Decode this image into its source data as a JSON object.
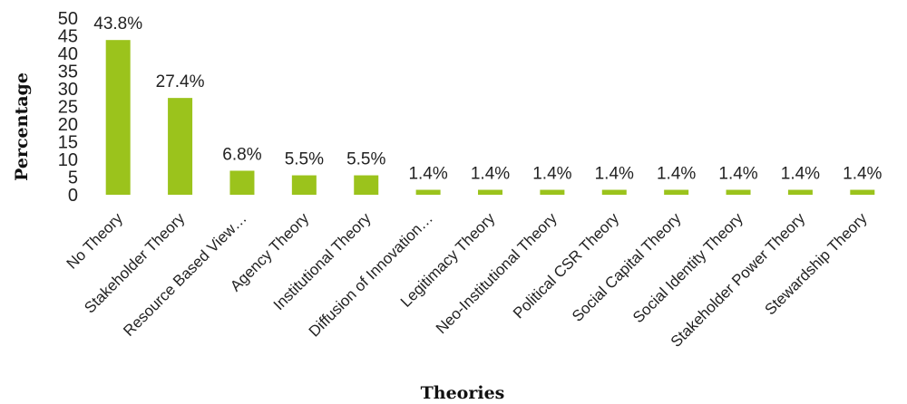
{
  "chart_data": {
    "type": "bar",
    "title": "",
    "xlabel": "Theories",
    "ylabel": "Percentage",
    "ylim": [
      0,
      50
    ],
    "yticks": [
      0,
      5,
      10,
      15,
      20,
      25,
      30,
      35,
      40,
      45,
      50
    ],
    "grid": false,
    "bar_color": "#9bc31c",
    "categories": [
      "No Theory",
      "Stakeholder Theory",
      "Resource Based View…",
      "Agency Theory",
      "Institutional Theory",
      "Diffusion of Innovation…",
      "Legitimacy Theory",
      "Neo-Institutional Theory",
      "Political CSR Theory",
      "Social Capital Theory",
      "Social Identity Theory",
      "Stakeholder Power Theory",
      "Stewardship Theory"
    ],
    "values": [
      43.8,
      27.4,
      6.8,
      5.5,
      5.5,
      1.4,
      1.4,
      1.4,
      1.4,
      1.4,
      1.4,
      1.4,
      1.4
    ],
    "data_labels": [
      "43.8%",
      "27.4%",
      "6.8%",
      "5.5%",
      "5.5%",
      "1.4%",
      "1.4%",
      "1.4%",
      "1.4%",
      "1.4%",
      "1.4%",
      "1.4%",
      "1.4%"
    ]
  }
}
